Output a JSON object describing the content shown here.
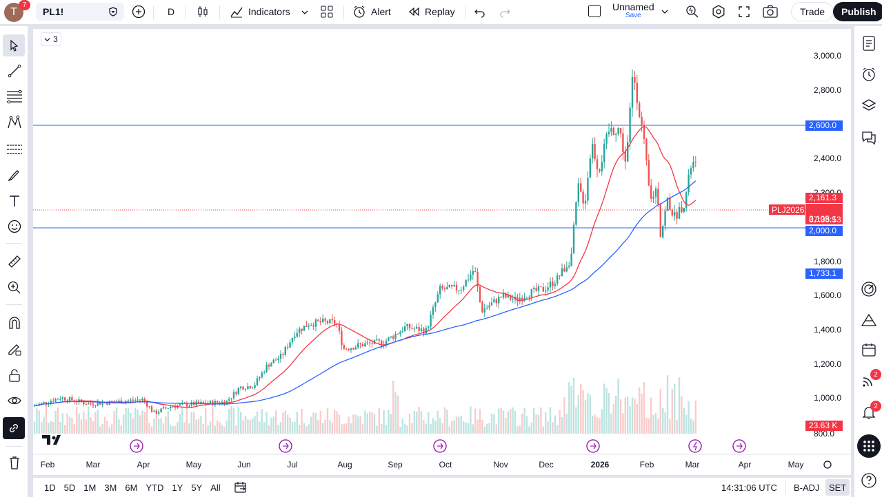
{
  "toolbar": {
    "avatar_letter": "T",
    "avatar_badge": "7",
    "symbol": "PL1!",
    "interval": "D",
    "indicators_label": "Indicators",
    "alert_label": "Alert",
    "replay_label": "Replay",
    "layout_name": "Unnamed",
    "layout_save": "Save",
    "trade_label": "Trade",
    "publish_label": "Publish"
  },
  "chart": {
    "legend_count": "3",
    "price_ticks": [
      "3,000.0",
      "2,800.0",
      "2,400.0",
      "2,300.0",
      "1,800.0",
      "1,600.0",
      "1,400.0",
      "1,200.0",
      "1,000.0",
      "800.0"
    ],
    "time_ticks": [
      "Feb",
      "Mar",
      "Apr",
      "May",
      "Jun",
      "Jul",
      "Aug",
      "Sep",
      "Oct",
      "Nov",
      "Dec",
      "2026",
      "Feb",
      "Mar",
      "Apr",
      "May"
    ],
    "tags": {
      "hline_top": "2,600.0",
      "ma_fast": "2,161.3",
      "symbol_tag": "PLJ2026",
      "last_price": "2,105.1",
      "countdown": "07:38:53",
      "hline_bottom": "2,000.0",
      "ma_slow": "1,733.1",
      "volume": "23.63 K"
    },
    "colors": {
      "up": "#26a69a",
      "down": "#ef5350",
      "ma_fast": "#f23645",
      "ma_slow": "#2962ff",
      "hline": "#2962ff"
    }
  },
  "bottom": {
    "ranges": [
      "1D",
      "5D",
      "1M",
      "3M",
      "6M",
      "YTD",
      "1Y",
      "5Y",
      "All"
    ],
    "clock": "14:31:06 UTC",
    "adj": "B-ADJ",
    "session": "SET"
  },
  "right_badges": {
    "ideas": "2",
    "alerts": "2"
  }
}
